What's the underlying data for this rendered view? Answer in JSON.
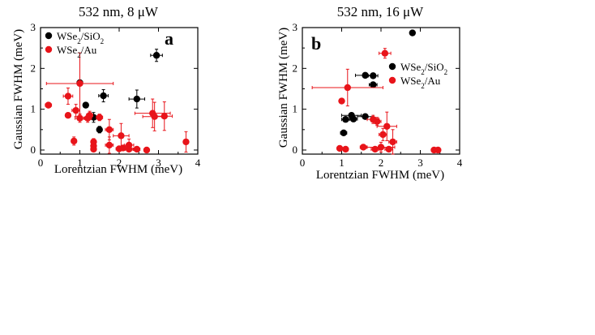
{
  "chart_data": [
    {
      "type": "scatter",
      "title": "532 nm, 8 μW",
      "panel_label": "a",
      "xlabel": "Lorentzian FWHM (meV)",
      "ylabel": "Gaussian FWHM (meV)",
      "xlim": [
        0,
        4
      ],
      "ylim": [
        -0.1,
        3
      ],
      "xticks": [
        0,
        1,
        2,
        3,
        4
      ],
      "yticks": [
        0,
        1,
        2,
        3
      ],
      "legend_position": "top-left",
      "series": [
        {
          "name": "WSe2/SiO2",
          "label_main": "WSe",
          "label_sub1": "2",
          "label_mid": "/SiO",
          "label_sub2": "2",
          "color": "#000000",
          "points": [
            {
              "x": 2.95,
              "y": 2.32,
              "xerr": 0.15,
              "yerr": 0.15
            },
            {
              "x": 1.0,
              "y": 1.65,
              "xerr": 0.05,
              "yerr": 0.0
            },
            {
              "x": 2.45,
              "y": 1.25,
              "xerr": 0.2,
              "yerr": 0.22
            },
            {
              "x": 1.6,
              "y": 1.33,
              "xerr": 0.12,
              "yerr": 0.15
            },
            {
              "x": 1.15,
              "y": 1.1,
              "xerr": 0.06,
              "yerr": 0.0
            },
            {
              "x": 1.35,
              "y": 0.8,
              "xerr": 0.1,
              "yerr": 0.12
            },
            {
              "x": 1.5,
              "y": 0.5,
              "xerr": 0.06,
              "yerr": 0.08
            }
          ]
        },
        {
          "name": "WSe2/Au",
          "label_main": "WSe",
          "label_sub1": "2",
          "label_mid": "/Au",
          "label_sub2": "",
          "color": "#e8141a",
          "points": [
            {
              "x": 1.0,
              "y": 1.63,
              "xerr": 0.85,
              "yerr": 0.75
            },
            {
              "x": 0.2,
              "y": 1.1,
              "xerr": 0.08,
              "yerr": 0.0
            },
            {
              "x": 0.7,
              "y": 1.32,
              "xerr": 0.12,
              "yerr": 0.2
            },
            {
              "x": 0.9,
              "y": 0.97,
              "xerr": 0.1,
              "yerr": 0.15
            },
            {
              "x": 0.7,
              "y": 0.85,
              "xerr": 0.06,
              "yerr": 0.0
            },
            {
              "x": 1.0,
              "y": 0.78,
              "xerr": 0.12,
              "yerr": 0.1
            },
            {
              "x": 1.2,
              "y": 0.78,
              "xerr": 0.1,
              "yerr": 0.1
            },
            {
              "x": 1.25,
              "y": 0.85,
              "xerr": 0.08,
              "yerr": 0.1
            },
            {
              "x": 1.5,
              "y": 0.8,
              "xerr": 0.08,
              "yerr": 0.08
            },
            {
              "x": 0.85,
              "y": 0.22,
              "xerr": 0.06,
              "yerr": 0.1
            },
            {
              "x": 1.35,
              "y": 0.2,
              "xerr": 0.04,
              "yerr": 0.08
            },
            {
              "x": 1.35,
              "y": 0.1,
              "xerr": 0.04,
              "yerr": 0.06
            },
            {
              "x": 1.35,
              "y": 0.02,
              "xerr": 0.04,
              "yerr": 0.0
            },
            {
              "x": 1.75,
              "y": 0.5,
              "xerr": 0.1,
              "yerr": 0.25
            },
            {
              "x": 1.75,
              "y": 0.12,
              "xerr": 0.1,
              "yerr": 0.2
            },
            {
              "x": 2.05,
              "y": 0.35,
              "xerr": 0.2,
              "yerr": 0.3
            },
            {
              "x": 2.0,
              "y": 0.03,
              "xerr": 0.08,
              "yerr": 0.0
            },
            {
              "x": 2.1,
              "y": 0.05,
              "xerr": 0.1,
              "yerr": 0.05
            },
            {
              "x": 2.25,
              "y": 0.12,
              "xerr": 0.12,
              "yerr": 0.15
            },
            {
              "x": 2.25,
              "y": 0.02,
              "xerr": 0.1,
              "yerr": 0.0
            },
            {
              "x": 2.45,
              "y": 0.02,
              "xerr": 0.08,
              "yerr": 0.0
            },
            {
              "x": 2.7,
              "y": 0.0,
              "xerr": 0.06,
              "yerr": 0.0
            },
            {
              "x": 2.85,
              "y": 0.9,
              "xerr": 0.45,
              "yerr": 0.35
            },
            {
              "x": 2.9,
              "y": 0.82,
              "xerr": 0.3,
              "yerr": 0.35
            },
            {
              "x": 3.15,
              "y": 0.83,
              "xerr": 0.2,
              "yerr": 0.35
            },
            {
              "x": 3.7,
              "y": 0.2,
              "xerr": 0.05,
              "yerr": 0.25
            }
          ]
        }
      ]
    },
    {
      "type": "scatter",
      "title": "532 nm, 16 μW",
      "panel_label": "b",
      "xlabel": "Lorentzian FWHM (meV)",
      "ylabel": "Gaussian FWHM (meV)",
      "xlim": [
        0,
        4
      ],
      "ylim": [
        -0.1,
        3
      ],
      "xticks": [
        0,
        1,
        2,
        3,
        4
      ],
      "yticks": [
        0,
        1,
        2,
        3
      ],
      "legend_position": "top-right",
      "series": [
        {
          "name": "WSe2/SiO2",
          "label_main": "WSe",
          "label_sub1": "2",
          "label_mid": "/SiO",
          "label_sub2": "2",
          "color": "#000000",
          "points": [
            {
              "x": 2.8,
              "y": 2.87,
              "xerr": 0.0,
              "yerr": 0.0
            },
            {
              "x": 1.6,
              "y": 1.83,
              "xerr": 0.25,
              "yerr": 0.0
            },
            {
              "x": 1.8,
              "y": 1.82,
              "xerr": 0.12,
              "yerr": 0.0
            },
            {
              "x": 1.8,
              "y": 1.6,
              "xerr": 0.1,
              "yerr": 0.05
            },
            {
              "x": 1.25,
              "y": 0.85,
              "xerr": 0.25,
              "yerr": 0.0
            },
            {
              "x": 1.1,
              "y": 0.75,
              "xerr": 0.1,
              "yerr": 0.0
            },
            {
              "x": 1.3,
              "y": 0.76,
              "xerr": 0.1,
              "yerr": 0.0
            },
            {
              "x": 1.6,
              "y": 0.82,
              "xerr": 0.2,
              "yerr": 0.0
            },
            {
              "x": 1.05,
              "y": 0.42,
              "xerr": 0.08,
              "yerr": 0.0
            }
          ]
        },
        {
          "name": "WSe2/Au",
          "label_main": "WSe",
          "label_sub1": "2",
          "label_mid": "/Au",
          "label_sub2": "",
          "color": "#e8141a",
          "points": [
            {
              "x": 2.1,
              "y": 2.37,
              "xerr": 0.15,
              "yerr": 0.12
            },
            {
              "x": 1.15,
              "y": 1.53,
              "xerr": 0.9,
              "yerr": 0.45
            },
            {
              "x": 1.0,
              "y": 1.2,
              "xerr": 0.05,
              "yerr": 0.0
            },
            {
              "x": 1.8,
              "y": 0.75,
              "xerr": 0.15,
              "yerr": 0.1
            },
            {
              "x": 1.9,
              "y": 0.7,
              "xerr": 0.1,
              "yerr": 0.1
            },
            {
              "x": 2.15,
              "y": 0.58,
              "xerr": 0.25,
              "yerr": 0.35
            },
            {
              "x": 2.05,
              "y": 0.38,
              "xerr": 0.1,
              "yerr": 0.15
            },
            {
              "x": 2.3,
              "y": 0.2,
              "xerr": 0.1,
              "yerr": 0.3
            },
            {
              "x": 0.95,
              "y": 0.04,
              "xerr": 0.05,
              "yerr": 0.0
            },
            {
              "x": 1.1,
              "y": 0.02,
              "xerr": 0.05,
              "yerr": 0.0
            },
            {
              "x": 1.55,
              "y": 0.07,
              "xerr": 0.08,
              "yerr": 0.0
            },
            {
              "x": 1.85,
              "y": 0.02,
              "xerr": 0.1,
              "yerr": 0.0
            },
            {
              "x": 2.0,
              "y": 0.07,
              "xerr": 0.35,
              "yerr": 0.12
            },
            {
              "x": 2.2,
              "y": 0.02,
              "xerr": 0.1,
              "yerr": 0.0
            },
            {
              "x": 3.35,
              "y": 0.0,
              "xerr": 0.05,
              "yerr": 0.0
            },
            {
              "x": 3.45,
              "y": 0.0,
              "xerr": 0.05,
              "yerr": 0.0
            }
          ]
        }
      ]
    }
  ]
}
